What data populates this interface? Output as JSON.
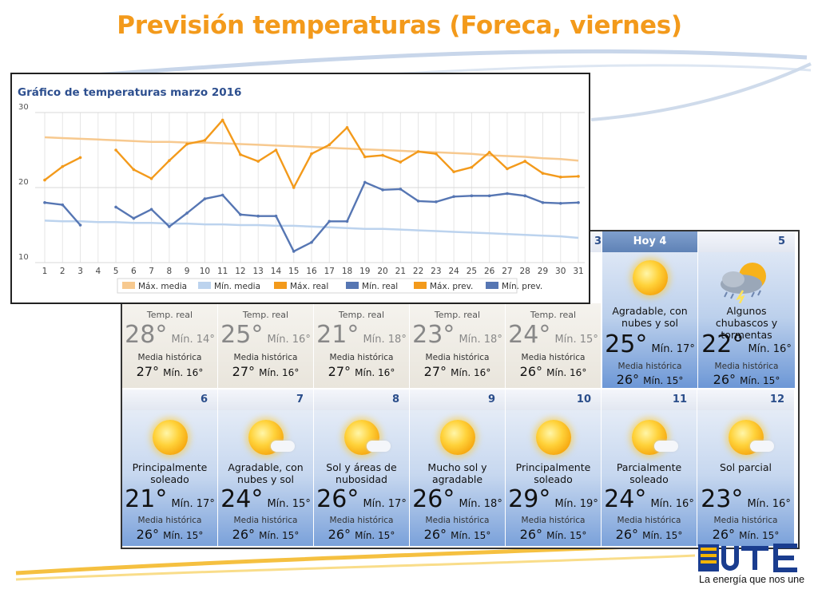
{
  "slide": {
    "title": "Previsión temperaturas (Foreca, viernes)",
    "logo_tagline": "La energía que nos une",
    "colors": {
      "title": "#f39a1b",
      "panel_blue": "#5f82b6"
    }
  },
  "chart_data": {
    "type": "line",
    "title": "Gráfico de temperaturas marzo 2016",
    "xlabel": "",
    "ylabel": "",
    "x": [
      1,
      2,
      3,
      4,
      5,
      6,
      7,
      8,
      9,
      10,
      11,
      12,
      13,
      14,
      15,
      16,
      17,
      18,
      19,
      20,
      21,
      22,
      23,
      24,
      25,
      26,
      27,
      28,
      29,
      30,
      31
    ],
    "ylim": [
      10,
      30
    ],
    "yticks": [
      10,
      20,
      30
    ],
    "grid": true,
    "legend_position": "bottom",
    "series": [
      {
        "name": "Máx. media",
        "color": "#f7c98f",
        "values": [
          26.7,
          26.6,
          26.5,
          26.4,
          26.3,
          26.2,
          26.1,
          26.1,
          26,
          26,
          25.9,
          25.8,
          25.7,
          25.6,
          25.5,
          25.4,
          25.3,
          25.2,
          25.1,
          25,
          24.9,
          24.8,
          24.7,
          24.6,
          24.5,
          24.3,
          24.2,
          24.1,
          23.9,
          23.8,
          23.6
        ]
      },
      {
        "name": "Mín. media",
        "color": "#bcd3ee",
        "values": [
          15.6,
          15.5,
          15.5,
          15.4,
          15.4,
          15.3,
          15.3,
          15.2,
          15.2,
          15.1,
          15.1,
          15,
          15,
          14.9,
          14.9,
          14.8,
          14.7,
          14.6,
          14.5,
          14.5,
          14.4,
          14.3,
          14.2,
          14.1,
          14,
          13.9,
          13.8,
          13.7,
          13.6,
          13.5,
          13.3
        ]
      },
      {
        "name": "Máx. real",
        "color": "#f39a1b",
        "values": [
          21,
          22.8,
          24,
          null,
          25,
          22.4,
          21.2,
          23.6,
          25.8,
          26.3,
          29,
          24.4,
          23.5,
          25,
          20,
          24.5,
          25.7,
          28,
          24.1,
          24.3,
          23.4,
          24.8,
          24.5,
          22.1,
          22.7,
          24.7,
          22.5,
          23.5,
          null,
          null,
          null
        ]
      },
      {
        "name": "Mín. real",
        "color": "#5676b3",
        "values": [
          18,
          17.7,
          15,
          null,
          17.4,
          15.9,
          17.1,
          14.8,
          16.6,
          18.5,
          19,
          16.4,
          16.2,
          16.2,
          11.5,
          12.7,
          15.5,
          15.5,
          20.7,
          19.7,
          19.8,
          18.2,
          18.1,
          18.8,
          18.9,
          18.9,
          19.2,
          18.9,
          null,
          null,
          null
        ]
      },
      {
        "name": "Máx. prev.",
        "color": "#f39a1b",
        "values": [
          null,
          null,
          null,
          null,
          null,
          null,
          null,
          null,
          null,
          null,
          null,
          null,
          null,
          null,
          null,
          null,
          null,
          null,
          null,
          null,
          null,
          null,
          null,
          null,
          null,
          null,
          null,
          23.5,
          21.9,
          21.4,
          21.5
        ]
      },
      {
        "name": "Mín. prev.",
        "color": "#5676b3",
        "values": [
          null,
          null,
          null,
          null,
          null,
          null,
          null,
          null,
          null,
          null,
          null,
          null,
          null,
          null,
          null,
          null,
          null,
          null,
          null,
          null,
          null,
          null,
          null,
          null,
          null,
          null,
          null,
          18.9,
          18,
          17.9,
          18
        ]
      }
    ]
  },
  "forecast": {
    "header_partial": "3",
    "header_today": "Hoy 4",
    "header_5": "5",
    "past_days": [
      {
        "label": "Temp. real",
        "max": "28°",
        "min": "Mín. 14°",
        "hist_label": "Media histórica",
        "hist_max": "27°",
        "hist_min": "Mín. 16°"
      },
      {
        "label": "Temp. real",
        "max": "25°",
        "min": "Mín. 16°",
        "hist_label": "Media histórica",
        "hist_max": "27°",
        "hist_min": "Mín. 16°"
      },
      {
        "label": "Temp. real",
        "max": "21°",
        "min": "Mín. 18°",
        "hist_label": "Media histórica",
        "hist_max": "27°",
        "hist_min": "Mín. 16°"
      },
      {
        "label": "Temp. real",
        "max": "23°",
        "min": "Mín. 18°",
        "hist_label": "Media histórica",
        "hist_max": "27°",
        "hist_min": "Mín. 16°"
      },
      {
        "label": "Temp. real",
        "max": "24°",
        "min": "Mín. 15°",
        "hist_label": "Media histórica",
        "hist_max": "26°",
        "hist_min": "Mín. 16°"
      }
    ],
    "today": {
      "desc": "Agradable, con nubes y sol",
      "max": "25°",
      "min": "Mín. 17°",
      "hist_label": "Media histórica",
      "hist_max": "26°",
      "hist_min": "Mín. 15°",
      "icon": "sun-cloud-icon"
    },
    "day5": {
      "desc": "Algunos chubascos y tormentas",
      "max": "22°",
      "min": "Mín. 16°",
      "hist_label": "Media histórica",
      "hist_max": "26°",
      "hist_min": "Mín. 15°",
      "icon": "storm-icon"
    },
    "week": [
      {
        "day": "6",
        "desc": "Principalmente soleado",
        "max": "21°",
        "min": "Mín. 17°",
        "hist_label": "Media histórica",
        "hist_max": "26°",
        "hist_min": "Mín. 15°",
        "icon": "sun-icon"
      },
      {
        "day": "7",
        "desc": "Agradable, con nubes y sol",
        "max": "24°",
        "min": "Mín. 15°",
        "hist_label": "Media histórica",
        "hist_max": "26°",
        "hist_min": "Mín. 15°",
        "icon": "sun-cloud-icon"
      },
      {
        "day": "8",
        "desc": "Sol y áreas de nubosidad",
        "max": "26°",
        "min": "Mín. 17°",
        "hist_label": "Media histórica",
        "hist_max": "26°",
        "hist_min": "Mín. 15°",
        "icon": "sun-cloud-icon"
      },
      {
        "day": "9",
        "desc": "Mucho sol y agradable",
        "max": "26°",
        "min": "Mín. 18°",
        "hist_label": "Media histórica",
        "hist_max": "26°",
        "hist_min": "Mín. 15°",
        "icon": "sun-icon"
      },
      {
        "day": "10",
        "desc": "Principalmente soleado",
        "max": "29°",
        "min": "Mín. 19°",
        "hist_label": "Media histórica",
        "hist_max": "26°",
        "hist_min": "Mín. 15°",
        "icon": "sun-icon"
      },
      {
        "day": "11",
        "desc": "Parcialmente soleado",
        "max": "24°",
        "min": "Mín. 16°",
        "hist_label": "Media histórica",
        "hist_max": "26°",
        "hist_min": "Mín. 15°",
        "icon": "sun-cloud-icon"
      },
      {
        "day": "12",
        "desc": "Sol parcial",
        "max": "23°",
        "min": "Mín. 16°",
        "hist_label": "Media histórica",
        "hist_max": "26°",
        "hist_min": "Mín. 15°",
        "icon": "sun-cloud-icon"
      }
    ]
  }
}
